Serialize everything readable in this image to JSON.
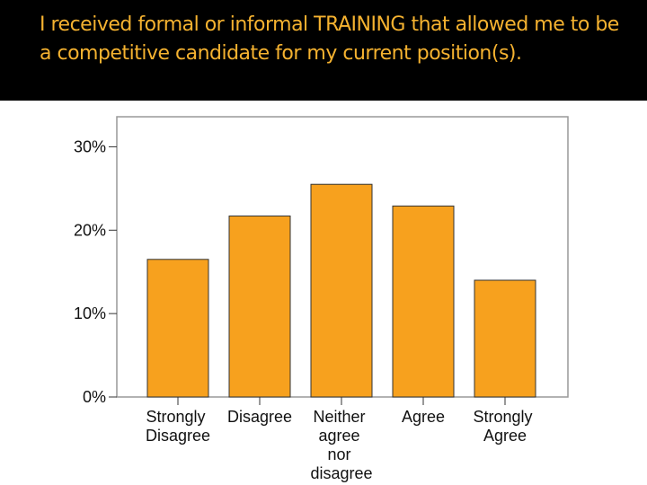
{
  "chart_data": {
    "type": "bar",
    "title": "I received formal or informal TRAINING that allowed me to be a competitive candidate for my current position(s).",
    "categories": [
      "Strongly Disagree",
      "Disagree",
      "Neither agree nor disagree",
      "Agree",
      "Strongly Agree"
    ],
    "values": [
      16.5,
      21.7,
      25.5,
      22.9,
      14.0
    ],
    "color": "#f7a11e",
    "ylim": [
      0,
      33.6
    ],
    "yticks": [
      {
        "value": 0,
        "label": "0%"
      },
      {
        "value": 10,
        "label": "10%"
      },
      {
        "value": 20,
        "label": "20%"
      },
      {
        "value": 30,
        "label": "30%"
      }
    ]
  }
}
